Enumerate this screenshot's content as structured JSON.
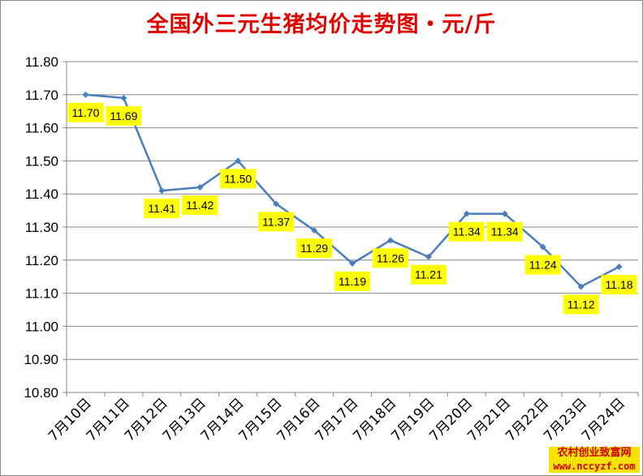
{
  "chart_data": {
    "type": "line",
    "title": "全国外三元生猪均价走势图・元/斤",
    "categories": [
      "7月10日",
      "7月11日",
      "7月12日",
      "7月13日",
      "7月14日",
      "7月15日",
      "7月16日",
      "7月17日",
      "7月18日",
      "7月19日",
      "7月20日",
      "7月21日",
      "7月22日",
      "7月23日",
      "7月24日"
    ],
    "series": [
      {
        "values": [
          11.7,
          11.69,
          11.41,
          11.42,
          11.5,
          11.37,
          11.29,
          11.19,
          11.26,
          11.21,
          11.34,
          11.34,
          11.24,
          11.12,
          11.18
        ]
      }
    ],
    "data_labels": [
      "11.70",
      "11.69",
      "11.41",
      "11.42",
      "11.50",
      "11.37",
      "11.29",
      "11.19",
      "11.26",
      "11.21",
      "11.34",
      "11.34",
      "11.24",
      "11.12",
      "11.18"
    ],
    "ylim": [
      10.8,
      11.8
    ],
    "yticks": [
      "10.80",
      "10.90",
      "11.00",
      "11.10",
      "11.20",
      "11.30",
      "11.40",
      "11.50",
      "11.60",
      "11.70",
      "11.80"
    ],
    "grid": true,
    "legend": "none",
    "colors": {
      "line": "#4a7ebb",
      "label_bg": "#ffff00",
      "title": "#e00000",
      "grid": "#868686"
    }
  },
  "watermark": {
    "name": "农村创业致富网",
    "url": "www.nccyzf.com"
  }
}
